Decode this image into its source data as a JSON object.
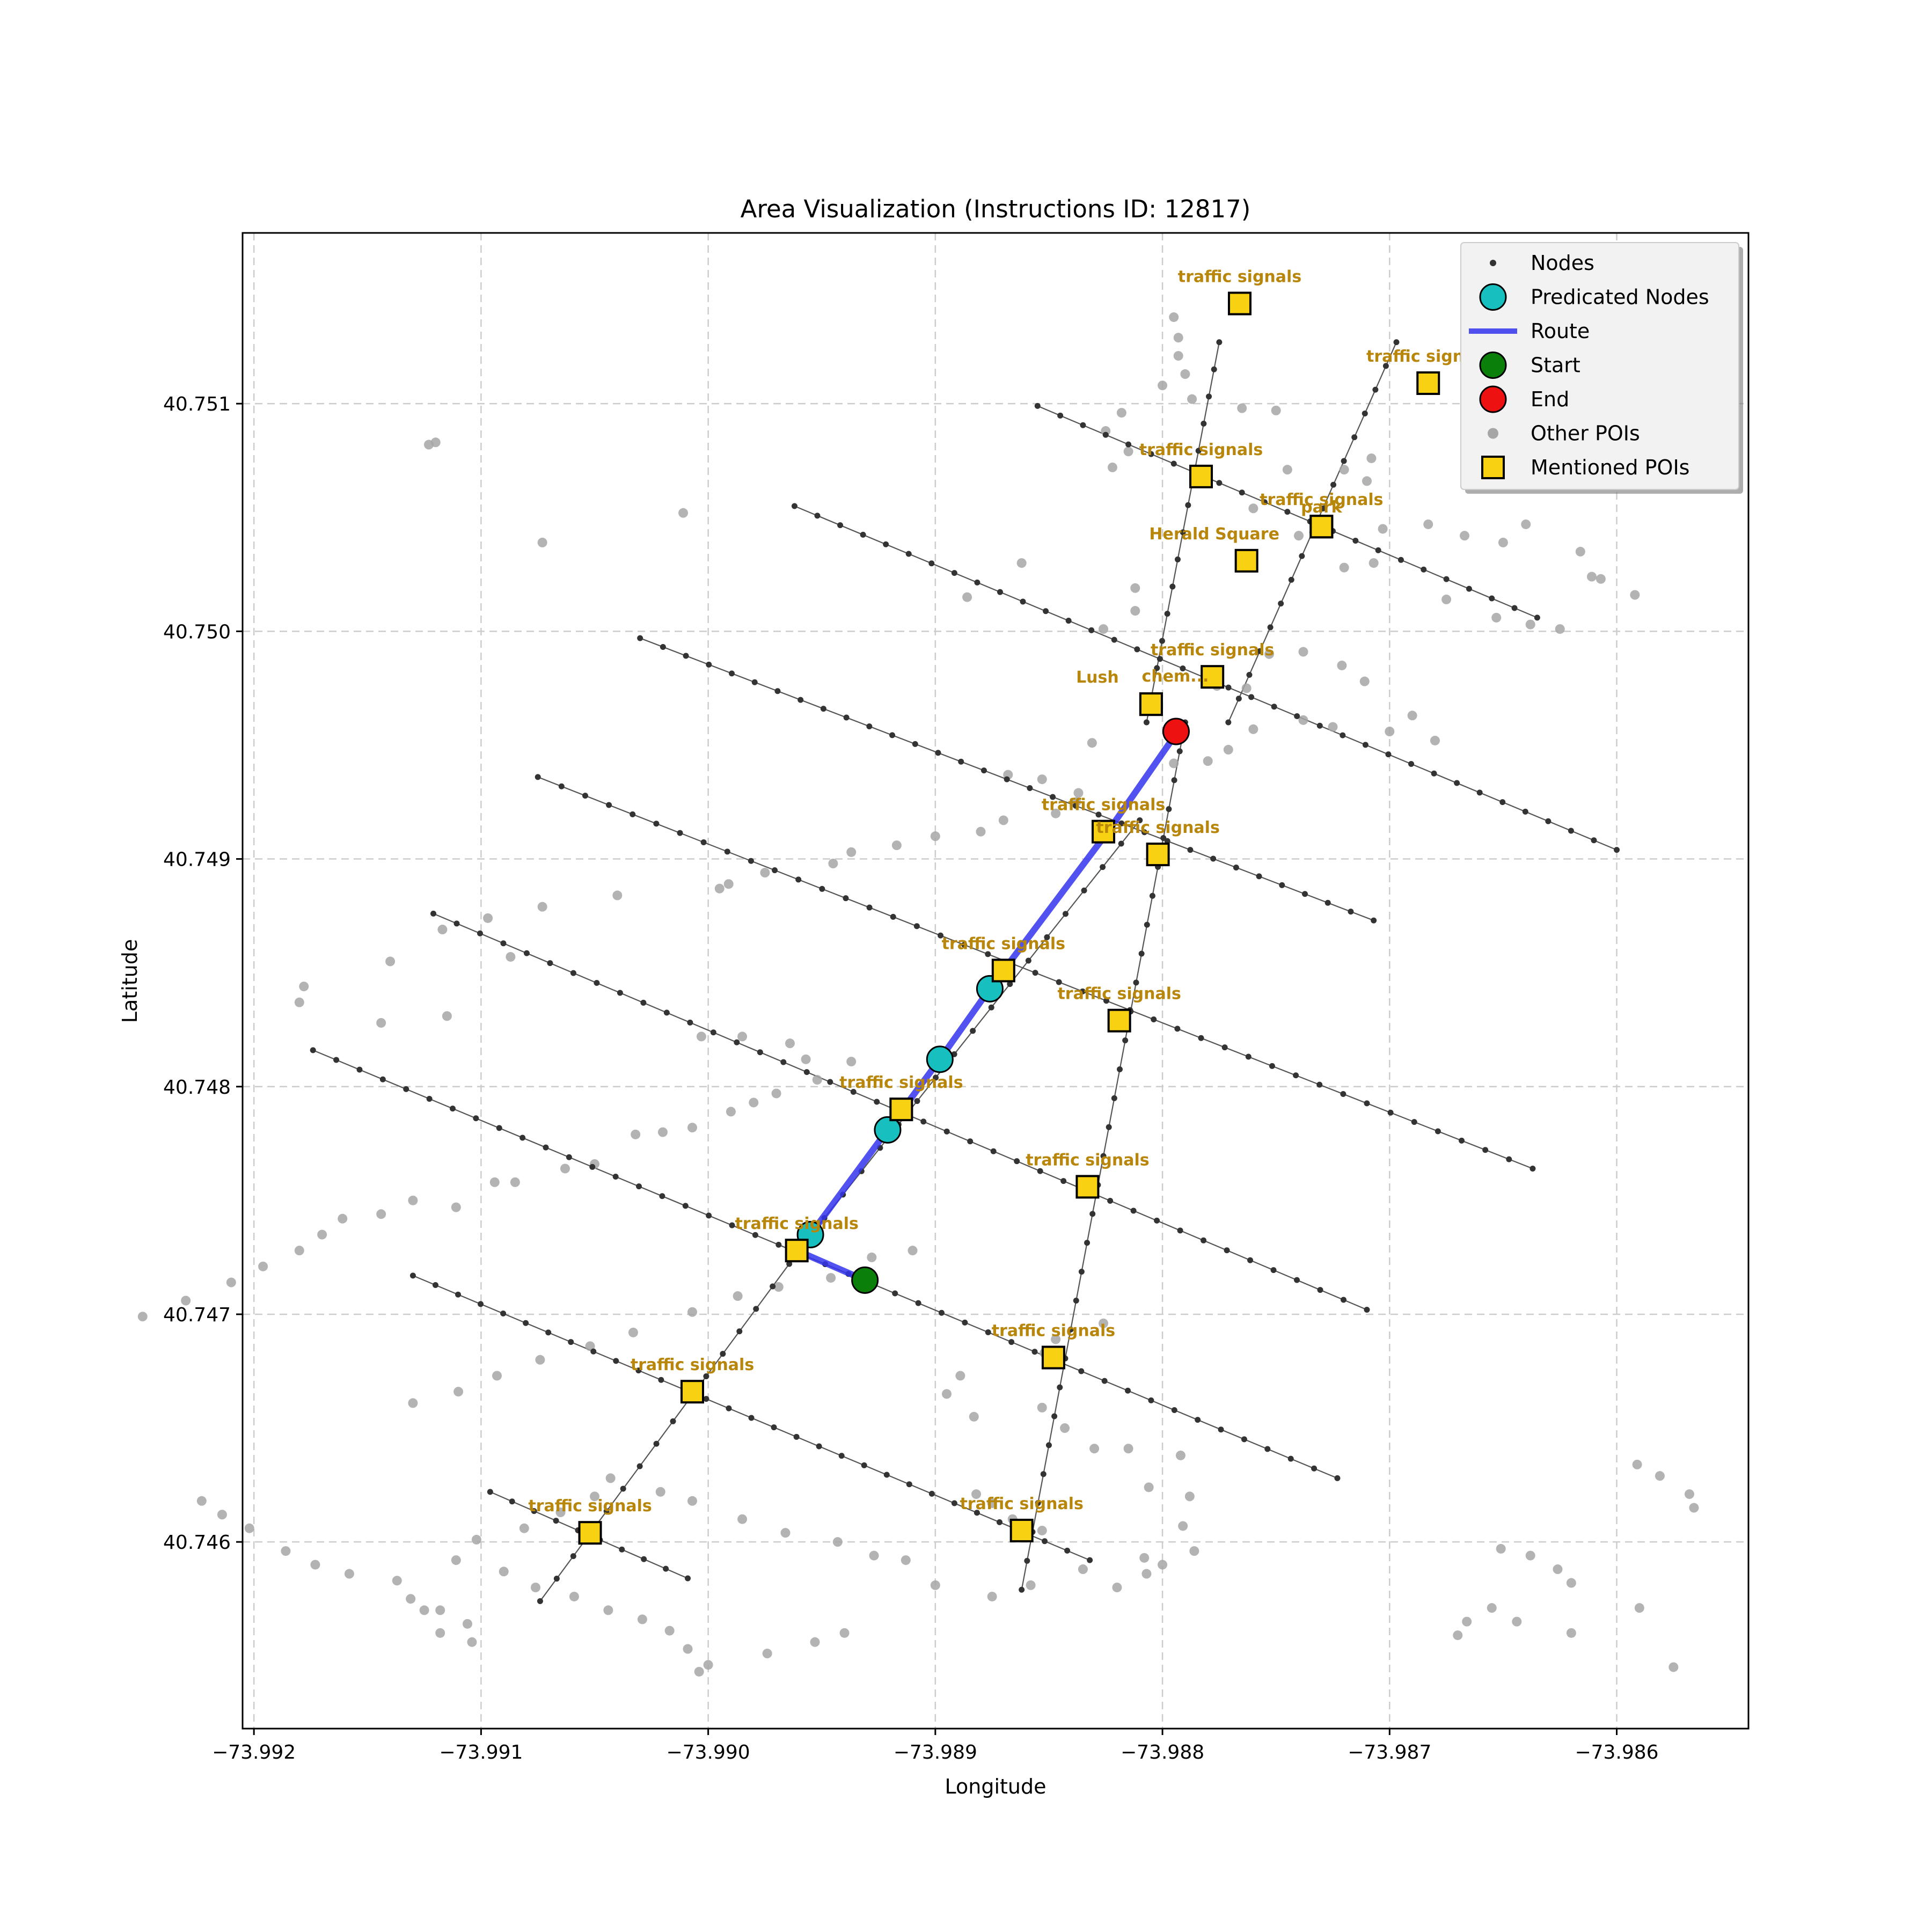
{
  "chart_data": {
    "type": "scatter",
    "title": "Area Visualization (Instructions ID: 12817)",
    "xlabel": "Longitude",
    "ylabel": "Latitude",
    "xlim": [
      -73.99205,
      -73.98542
    ],
    "ylim": [
      40.74518,
      40.75175
    ],
    "grid": true,
    "legend_position": "top-right",
    "x_ticks": [
      -73.992,
      -73.991,
      -73.99,
      -73.989,
      -73.988,
      -73.987,
      -73.986
    ],
    "x_tick_labels": [
      "−73.992",
      "−73.991",
      "−73.990",
      "−73.989",
      "−73.988",
      "−73.987",
      "−73.986"
    ],
    "y_ticks": [
      40.746,
      40.747,
      40.748,
      40.749,
      40.75,
      40.751
    ],
    "y_tick_labels": [
      "40.746",
      "40.747",
      "40.748",
      "40.749",
      "40.750",
      "40.751"
    ],
    "colors": {
      "nodes": "#333333",
      "street": "#555555",
      "predicted": "#17bfbf",
      "route": "#3434ee",
      "start": "#0a800a",
      "end": "#ee1111",
      "other_poi": "#a6a6a6",
      "mentioned_poi": "#f7d112",
      "poi_label": "#b8860b",
      "grid": "#cccccc"
    },
    "legend": [
      {
        "label": "Nodes",
        "marker": "nodes"
      },
      {
        "label": "Predicated Nodes",
        "marker": "predicted"
      },
      {
        "label": "Route",
        "marker": "route"
      },
      {
        "label": "Start",
        "marker": "start"
      },
      {
        "label": "End",
        "marker": "end"
      },
      {
        "label": "Other POIs",
        "marker": "other_poi"
      },
      {
        "label": "Mentioned POIs",
        "marker": "mentioned_poi"
      }
    ],
    "streets": [
      {
        "from": [
          -73.98855,
          40.75099
        ],
        "to": [
          -73.98635,
          40.75006
        ],
        "n": 22
      },
      {
        "from": [
          -73.98962,
          40.75055
        ],
        "to": [
          -73.986,
          40.74904
        ],
        "n": 36
      },
      {
        "from": [
          -73.9903,
          40.74997
        ],
        "to": [
          -73.98707,
          40.74873
        ],
        "n": 32
      },
      {
        "from": [
          -73.99075,
          40.74936
        ],
        "to": [
          -73.98637,
          40.74764
        ],
        "n": 42
      },
      {
        "from": [
          -73.99121,
          40.74876
        ],
        "to": [
          -73.9871,
          40.74702
        ],
        "n": 40
      },
      {
        "from": [
          -73.99174,
          40.74816
        ],
        "to": [
          -73.98723,
          40.74628
        ],
        "n": 44
      },
      {
        "from": [
          -73.9913,
          40.74717
        ],
        "to": [
          -73.98832,
          40.74592
        ],
        "n": 30
      },
      {
        "from": [
          -73.99096,
          40.74622
        ],
        "to": [
          -73.99009,
          40.74584
        ],
        "n": 9
      },
      {
        "from": [
          -73.98775,
          40.75127
        ],
        "to": [
          -73.98807,
          40.7496
        ],
        "n": 14
      },
      {
        "from": [
          -73.9879,
          40.7496
        ],
        "to": [
          -73.98862,
          40.74579
        ],
        "n": 30
      },
      {
        "from": [
          -73.98697,
          40.75127
        ],
        "to": [
          -73.98771,
          40.7496
        ],
        "n": 16
      },
      {
        "from": [
          -73.9881,
          40.74917
        ],
        "to": [
          -73.98957,
          40.74732
        ],
        "n": 18
      },
      {
        "from": [
          -73.98957,
          40.74732
        ],
        "to": [
          -73.99074,
          40.74574
        ],
        "n": 16
      }
    ],
    "predicted_nodes": [
      {
        "x": -73.98955,
        "y": 40.74735
      },
      {
        "x": -73.98921,
        "y": 40.74781
      },
      {
        "x": -73.98898,
        "y": 40.74812
      },
      {
        "x": -73.98876,
        "y": 40.74843
      }
    ],
    "route": [
      [
        -73.98931,
        40.74715
      ],
      [
        -73.98961,
        40.74728
      ],
      [
        -73.98955,
        40.74735
      ],
      [
        -73.98921,
        40.74781
      ],
      [
        -73.98898,
        40.74812
      ],
      [
        -73.98876,
        40.74843
      ],
      [
        -73.98824,
        40.74912
      ],
      [
        -73.98794,
        40.74955
      ]
    ],
    "start": {
      "x": -73.98931,
      "y": 40.74715
    },
    "end": {
      "x": -73.98794,
      "y": 40.74956
    },
    "mentioned_pois": [
      {
        "x": -73.98766,
        "y": 40.75144,
        "label": "traffic signals",
        "label_dx": 0
      },
      {
        "x": -73.98683,
        "y": 40.75109,
        "label": "traffic signals",
        "label_dx": 0
      },
      {
        "x": -73.98783,
        "y": 40.75068,
        "label": "traffic signals",
        "label_dx": 0
      },
      {
        "x": -73.9873,
        "y": 40.75046,
        "label": "traffic signals",
        "label_dx": 0
      },
      {
        "x": -73.98763,
        "y": 40.75031,
        "label": "Herald Square",
        "label_dx": -60
      },
      {
        "x": -73.9873,
        "y": 40.75046,
        "label": "park",
        "label_dx": 0,
        "label_dy": 14
      },
      {
        "x": -73.98778,
        "y": 40.7498,
        "label": "traffic signals",
        "label_dx": 0
      },
      {
        "x": -73.98805,
        "y": 40.74968,
        "label": "Lush",
        "label_dx": -100
      },
      {
        "x": -73.98805,
        "y": 40.74968,
        "label": "chem...",
        "label_dx": 45,
        "label_dy": -2
      },
      {
        "x": -73.98826,
        "y": 40.74912,
        "label": "traffic signals",
        "label_dx": 0
      },
      {
        "x": -73.98802,
        "y": 40.74902,
        "label": "traffic signals",
        "label_dx": 0
      },
      {
        "x": -73.9887,
        "y": 40.74851,
        "label": "traffic signals",
        "label_dx": 0
      },
      {
        "x": -73.98819,
        "y": 40.74829,
        "label": "traffic signals",
        "label_dx": 0
      },
      {
        "x": -73.98915,
        "y": 40.7479,
        "label": "traffic signals",
        "label_dx": 0
      },
      {
        "x": -73.98833,
        "y": 40.74756,
        "label": "traffic signals",
        "label_dx": 0
      },
      {
        "x": -73.98961,
        "y": 40.74728,
        "label": "traffic signals",
        "label_dx": 0
      },
      {
        "x": -73.98848,
        "y": 40.74681,
        "label": "traffic signals",
        "label_dx": 0
      },
      {
        "x": -73.99007,
        "y": 40.74666,
        "label": "traffic signals",
        "label_dx": 0
      },
      {
        "x": -73.99052,
        "y": 40.74604,
        "label": "traffic signals",
        "label_dx": 0
      },
      {
        "x": -73.98862,
        "y": 40.74605,
        "label": "traffic signals",
        "label_dx": 0
      }
    ],
    "other_pois": [
      [
        -73.98795,
        40.75138
      ],
      [
        -73.98793,
        40.75129
      ],
      [
        -73.98793,
        40.75121
      ],
      [
        -73.9879,
        40.75113
      ],
      [
        -73.988,
        40.75108
      ],
      [
        -73.98787,
        40.75102
      ],
      [
        -73.98765,
        40.75098
      ],
      [
        -73.9875,
        40.75097
      ],
      [
        -73.98818,
        40.75096
      ],
      [
        -73.98825,
        40.75088
      ],
      [
        -73.98815,
        40.75079
      ],
      [
        -73.98822,
        40.75072
      ],
      [
        -73.99123,
        40.75082
      ],
      [
        -73.9912,
        40.75083
      ],
      [
        -73.98708,
        40.75076
      ],
      [
        -73.9871,
        40.75066
      ],
      [
        -73.9872,
        40.75071
      ],
      [
        -73.98745,
        40.75071
      ],
      [
        -73.9876,
        40.75054
      ],
      [
        -73.98862,
        40.7503
      ],
      [
        -73.98886,
        40.75015
      ],
      [
        -73.98826,
        40.75001
      ],
      [
        -73.98812,
        40.75009
      ],
      [
        -73.98812,
        40.75019
      ],
      [
        -73.99073,
        40.75039
      ],
      [
        -73.99011,
        40.75052
      ],
      [
        -73.9874,
        40.75042
      ],
      [
        -73.98703,
        40.75045
      ],
      [
        -73.98683,
        40.75047
      ],
      [
        -73.98667,
        40.75042
      ],
      [
        -73.9864,
        40.75047
      ],
      [
        -73.9865,
        40.75039
      ],
      [
        -73.98616,
        40.75035
      ],
      [
        -73.98611,
        40.75024
      ],
      [
        -73.98607,
        40.75023
      ],
      [
        -73.98592,
        40.75016
      ],
      [
        -73.98675,
        40.75014
      ],
      [
        -73.98653,
        40.75006
      ],
      [
        -73.98638,
        40.75003
      ],
      [
        -73.98625,
        40.75001
      ],
      [
        -73.98707,
        40.7503
      ],
      [
        -73.9872,
        40.75028
      ],
      [
        -73.98776,
        40.74976
      ],
      [
        -73.98763,
        40.74975
      ],
      [
        -73.98753,
        40.7499
      ],
      [
        -73.98738,
        40.74991
      ],
      [
        -73.98721,
        40.74985
      ],
      [
        -73.98711,
        40.74978
      ],
      [
        -73.9869,
        40.74963
      ],
      [
        -73.9868,
        40.74952
      ],
      [
        -73.987,
        40.74956
      ],
      [
        -73.98725,
        40.74958
      ],
      [
        -73.98738,
        40.74961
      ],
      [
        -73.9876,
        40.74957
      ],
      [
        -73.98771,
        40.74948
      ],
      [
        -73.9878,
        40.74943
      ],
      [
        -73.98795,
        40.74942
      ],
      [
        -73.98831,
        40.74951
      ],
      [
        -73.98853,
        40.74935
      ],
      [
        -73.98868,
        40.74937
      ],
      [
        -73.98837,
        40.74929
      ],
      [
        -73.98838,
        40.74925
      ],
      [
        -73.98847,
        40.7492
      ],
      [
        -73.9887,
        40.74917
      ],
      [
        -73.9888,
        40.74912
      ],
      [
        -73.989,
        40.7491
      ],
      [
        -73.98917,
        40.74906
      ],
      [
        -73.98937,
        40.74903
      ],
      [
        -73.98945,
        40.74898
      ],
      [
        -73.98975,
        40.74894
      ],
      [
        -73.98991,
        40.74889
      ],
      [
        -73.98995,
        40.74887
      ],
      [
        -73.9904,
        40.74884
      ],
      [
        -73.99073,
        40.74879
      ],
      [
        -73.99097,
        40.74874
      ],
      [
        -73.99117,
        40.74869
      ],
      [
        -73.99087,
        40.74857
      ],
      [
        -73.9914,
        40.74855
      ],
      [
        -73.99178,
        40.74844
      ],
      [
        -73.9918,
        40.74837
      ],
      [
        -73.99115,
        40.74831
      ],
      [
        -73.99144,
        40.74828
      ],
      [
        -73.99003,
        40.74822
      ],
      [
        -73.98985,
        40.74822
      ],
      [
        -73.98964,
        40.74819
      ],
      [
        -73.98957,
        40.74812
      ],
      [
        -73.98937,
        40.74811
      ],
      [
        -73.98952,
        40.74803
      ],
      [
        -73.9897,
        40.74797
      ],
      [
        -73.9898,
        40.74793
      ],
      [
        -73.9899,
        40.74789
      ],
      [
        -73.99007,
        40.74782
      ],
      [
        -73.9902,
        40.7478
      ],
      [
        -73.99032,
        40.74779
      ],
      [
        -73.9905,
        40.74766
      ],
      [
        -73.99063,
        40.74764
      ],
      [
        -73.99085,
        40.74758
      ],
      [
        -73.99094,
        40.74758
      ],
      [
        -73.99111,
        40.74747
      ],
      [
        -73.9913,
        40.7475
      ],
      [
        -73.99144,
        40.74744
      ],
      [
        -73.99161,
        40.74742
      ],
      [
        -73.9917,
        40.74735
      ],
      [
        -73.9918,
        40.74728
      ],
      [
        -73.99196,
        40.74721
      ],
      [
        -73.9921,
        40.74714
      ],
      [
        -73.9923,
        40.74706
      ],
      [
        -73.99249,
        40.74699
      ],
      [
        -73.9891,
        40.74728
      ],
      [
        -73.98928,
        40.74725
      ],
      [
        -73.98946,
        40.74716
      ],
      [
        -73.98969,
        40.74712
      ],
      [
        -73.98987,
        40.74708
      ],
      [
        -73.99007,
        40.74701
      ],
      [
        -73.99033,
        40.74692
      ],
      [
        -73.99052,
        40.74686
      ],
      [
        -73.99074,
        40.7468
      ],
      [
        -73.99093,
        40.74673
      ],
      [
        -73.9911,
        40.74666
      ],
      [
        -73.9913,
        40.74661
      ],
      [
        -73.98826,
        40.74696
      ],
      [
        -73.98847,
        40.74689
      ],
      [
        -73.98852,
        40.74683
      ],
      [
        -73.98889,
        40.74673
      ],
      [
        -73.98895,
        40.74665
      ],
      [
        -73.98883,
        40.74655
      ],
      [
        -73.98853,
        40.74659
      ],
      [
        -73.98843,
        40.7465
      ],
      [
        -73.9883,
        40.74641
      ],
      [
        -73.98815,
        40.74641
      ],
      [
        -73.98792,
        40.74638
      ],
      [
        -73.98806,
        40.74624
      ],
      [
        -73.98788,
        40.7462
      ],
      [
        -73.98791,
        40.74607
      ],
      [
        -73.98808,
        40.74593
      ],
      [
        -73.98835,
        40.74588
      ],
      [
        -73.98858,
        40.74581
      ],
      [
        -73.98875,
        40.74576
      ],
      [
        -73.989,
        40.74581
      ],
      [
        -73.98913,
        40.74592
      ],
      [
        -73.98927,
        40.74594
      ],
      [
        -73.98943,
        40.746
      ],
      [
        -73.98966,
        40.74604
      ],
      [
        -73.98985,
        40.7461
      ],
      [
        -73.99007,
        40.74618
      ],
      [
        -73.99021,
        40.74622
      ],
      [
        -73.99043,
        40.74628
      ],
      [
        -73.9905,
        40.7462
      ],
      [
        -73.99065,
        40.74613
      ],
      [
        -73.99081,
        40.74606
      ],
      [
        -73.99102,
        40.74601
      ],
      [
        -73.99111,
        40.74592
      ],
      [
        -73.9909,
        40.74587
      ],
      [
        -73.99076,
        40.7458
      ],
      [
        -73.99059,
        40.74576
      ],
      [
        -73.99044,
        40.7457
      ],
      [
        -73.99029,
        40.74566
      ],
      [
        -73.99017,
        40.74561
      ],
      [
        -73.99009,
        40.74553
      ],
      [
        -73.99,
        40.74546
      ],
      [
        -73.99106,
        40.74564
      ],
      [
        -73.99118,
        40.7457
      ],
      [
        -73.99131,
        40.74575
      ],
      [
        -73.99137,
        40.74583
      ],
      [
        -73.99158,
        40.74586
      ],
      [
        -73.99173,
        40.7459
      ],
      [
        -73.99186,
        40.74596
      ],
      [
        -73.99202,
        40.74606
      ],
      [
        -73.99214,
        40.74612
      ],
      [
        -73.99223,
        40.74618
      ],
      [
        -73.99118,
        40.7456
      ],
      [
        -73.99104,
        40.74556
      ],
      [
        -73.98853,
        40.74605
      ],
      [
        -73.98866,
        40.7461
      ],
      [
        -73.98875,
        40.74617
      ],
      [
        -73.98882,
        40.74621
      ],
      [
        -73.99004,
        40.74543
      ],
      [
        -73.98974,
        40.74551
      ],
      [
        -73.98953,
        40.74556
      ],
      [
        -73.9894,
        40.7456
      ],
      [
        -73.9882,
        40.7458
      ],
      [
        -73.98807,
        40.74586
      ],
      [
        -73.988,
        40.7459
      ],
      [
        -73.98786,
        40.74596
      ],
      [
        -73.99125,
        40.7457
      ],
      [
        -73.98655,
        40.74571
      ],
      [
        -73.98666,
        40.74565
      ],
      [
        -73.9867,
        40.74559
      ],
      [
        -73.9862,
        40.74582
      ],
      [
        -73.98626,
        40.74588
      ],
      [
        -73.98638,
        40.74594
      ],
      [
        -73.98651,
        40.74597
      ],
      [
        -73.98566,
        40.74615
      ],
      [
        -73.98568,
        40.74621
      ],
      [
        -73.98581,
        40.74629
      ],
      [
        -73.98591,
        40.74634
      ],
      [
        -73.98575,
        40.74545
      ],
      [
        -73.9862,
        40.7456
      ],
      [
        -73.98644,
        40.74565
      ],
      [
        -73.9859,
        40.74571
      ]
    ]
  }
}
